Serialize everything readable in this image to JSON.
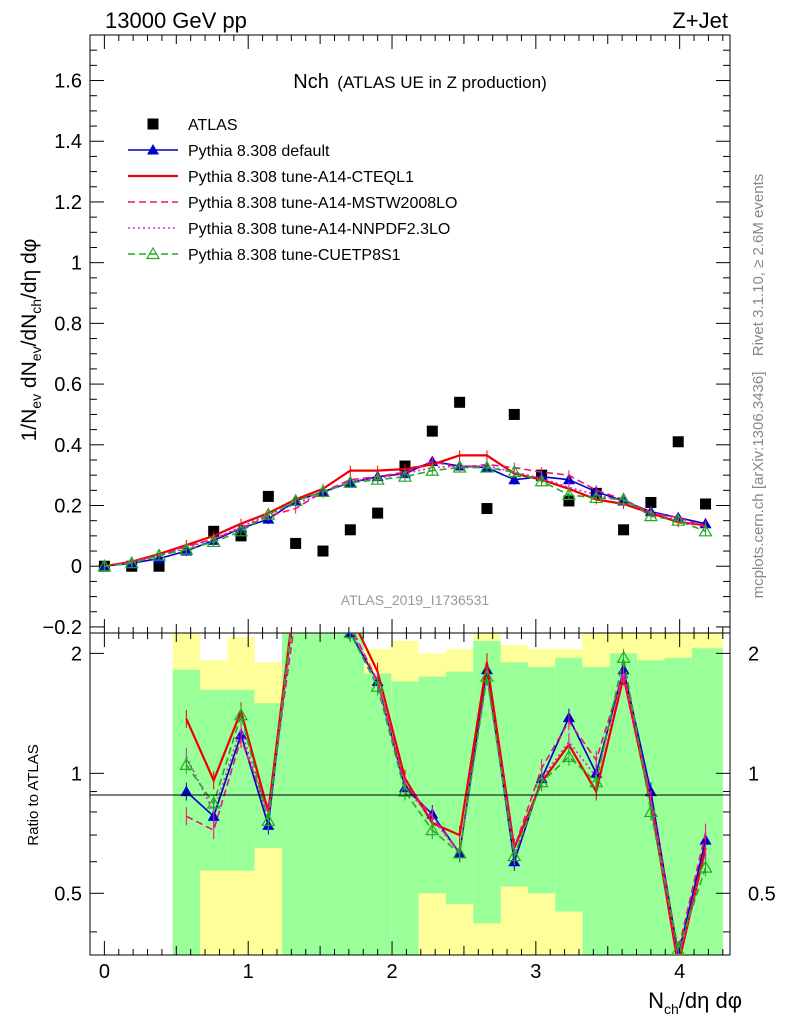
{
  "header": {
    "left": "13000 GeV pp",
    "right": "Z+Jet"
  },
  "side_labels": {
    "rivet": "Rivet 3.1.10, ≥ 2.6M events",
    "mcplots": "mcplots.cern.ch [arXiv:1306.3436]"
  },
  "chart_data": {
    "type": "line",
    "title_main": "Nch",
    "title_sub": "(ATLAS UE in Z production)",
    "watermark": "ATLAS_2019_I1736531",
    "xlabel": {
      "base": "N",
      "sub": "ch",
      "rest": "/dη dφ"
    },
    "ylabel": "1/N_ev dN_ev/dN_ch/dη dφ",
    "ratio_ylabel": "Ratio to ATLAS",
    "xlim": [
      -0.1,
      4.35
    ],
    "ylim": [
      -0.22,
      1.75
    ],
    "ratio_ylim": [
      0.35,
      2.25
    ],
    "xticks": [
      "0",
      "1",
      "2",
      "3",
      "4"
    ],
    "yticks": [
      "−0.2",
      "0",
      "0.2",
      "0.4",
      "0.6",
      "0.8",
      "1",
      "1.2",
      "1.4",
      "1.6"
    ],
    "ratio_yticks": [
      "0.5",
      "1",
      "2"
    ],
    "x": [
      0.0,
      0.19,
      0.38,
      0.57,
      0.76,
      0.95,
      1.14,
      1.33,
      1.52,
      1.71,
      1.9,
      2.09,
      2.28,
      2.47,
      2.66,
      2.85,
      3.04,
      3.23,
      3.42,
      3.61,
      3.8,
      3.99,
      4.18
    ],
    "series": [
      {
        "name": "ATLAS",
        "color": "#000000",
        "style": "marker",
        "values": [
          0.0,
          0.0,
          0.0,
          null,
          0.115,
          0.1,
          0.23,
          0.075,
          0.05,
          0.12,
          0.175,
          0.33,
          0.445,
          0.54,
          0.19,
          0.5,
          0.3,
          0.215,
          0.24,
          0.12,
          0.21,
          0.41,
          0.205
        ]
      },
      {
        "name": "Pythia 8.308 default",
        "color": "#0000cc",
        "style": "solid-triangle",
        "values": [
          0.0,
          0.01,
          0.025,
          0.05,
          0.085,
          0.125,
          0.155,
          0.215,
          0.245,
          0.275,
          0.295,
          0.305,
          0.345,
          0.33,
          0.325,
          0.285,
          0.295,
          0.285,
          0.245,
          0.215,
          0.18,
          0.16,
          0.14
        ]
      },
      {
        "name": "Pythia 8.308 tune-A14-CTEQL1",
        "color": "#ee0000",
        "style": "solid",
        "values": [
          0.0,
          0.015,
          0.04,
          0.07,
          0.1,
          0.14,
          0.175,
          0.22,
          0.255,
          0.315,
          0.315,
          0.32,
          0.335,
          0.365,
          0.365,
          0.305,
          0.285,
          0.255,
          0.22,
          0.205,
          0.175,
          0.145,
          0.135
        ]
      },
      {
        "name": "Pythia 8.308 tune-A14-MSTW2008LO",
        "color": "#ee1177",
        "style": "dashed",
        "values": [
          0.0,
          0.015,
          0.035,
          0.065,
          0.09,
          0.125,
          0.165,
          0.19,
          0.245,
          0.285,
          0.295,
          0.31,
          0.345,
          0.325,
          0.335,
          0.325,
          0.31,
          0.3,
          0.25,
          0.22,
          0.175,
          0.16,
          0.13
        ]
      },
      {
        "name": "Pythia 8.308 tune-A14-NNPDF2.3LO",
        "color": "#dd22cc",
        "style": "dotted",
        "values": [
          0.0,
          0.012,
          0.035,
          0.06,
          0.09,
          0.13,
          0.17,
          0.205,
          0.24,
          0.28,
          0.29,
          0.305,
          0.325,
          0.33,
          0.33,
          0.31,
          0.29,
          0.26,
          0.235,
          0.215,
          0.18,
          0.15,
          0.13
        ]
      },
      {
        "name": "Pythia 8.308 tune-CUETP8S1",
        "color": "#22aa22",
        "style": "dashed-open-triangle",
        "values": [
          0.0,
          0.01,
          0.035,
          0.055,
          0.08,
          0.115,
          0.17,
          0.215,
          0.245,
          0.275,
          0.285,
          0.295,
          0.315,
          0.325,
          0.325,
          0.31,
          0.28,
          0.235,
          0.225,
          0.22,
          0.165,
          0.15,
          0.115
        ]
      }
    ],
    "ratio_series": [
      {
        "name": "Pythia 8.308 default",
        "values": [
          null,
          null,
          null,
          0.9,
          0.78,
          1.25,
          0.74,
          2.9,
          3.0,
          2.25,
          1.7,
          0.92,
          0.79,
          0.63,
          1.82,
          0.6,
          0.97,
          1.38,
          1.0,
          1.82,
          0.9,
          0.35,
          0.68
        ]
      },
      {
        "name": "Pythia 8.308 tune-A14-CTEQL1",
        "values": [
          null,
          null,
          null,
          1.37,
          0.96,
          1.43,
          0.8,
          2.9,
          3.0,
          2.5,
          1.8,
          0.97,
          0.75,
          0.7,
          1.9,
          0.65,
          0.95,
          1.18,
          0.9,
          1.75,
          0.84,
          0.33,
          0.65
        ]
      },
      {
        "name": "Pythia 8.308 tune-A14-MSTW2008LO",
        "values": [
          null,
          null,
          null,
          0.78,
          0.72,
          1.22,
          0.8,
          2.5,
          2.9,
          2.35,
          1.7,
          0.94,
          0.78,
          0.63,
          1.75,
          0.65,
          1.03,
          1.35,
          1.08,
          1.8,
          0.86,
          0.36,
          0.71
        ]
      },
      {
        "name": "Pythia 8.308 tune-A14-NNPDF2.3LO",
        "values": [
          null,
          null,
          null,
          1.1,
          0.8,
          1.3,
          0.76,
          2.7,
          2.95,
          2.3,
          1.7,
          0.92,
          0.77,
          0.63,
          1.75,
          0.62,
          0.97,
          1.2,
          0.98,
          1.78,
          0.85,
          0.34,
          0.63
        ]
      },
      {
        "name": "Pythia 8.308 tune-CUETP8S1",
        "values": [
          null,
          null,
          null,
          1.05,
          0.84,
          1.4,
          0.76,
          2.9,
          3.0,
          2.25,
          1.65,
          0.9,
          0.72,
          0.63,
          1.75,
          0.62,
          0.95,
          1.1,
          0.95,
          1.95,
          0.8,
          0.36,
          0.58
        ]
      }
    ],
    "ratio_bands": [
      {
        "x0": 0.475,
        "x1": 0.665,
        "green": [
          0.35,
          1.82
        ],
        "yellow": [
          0.35,
          2.25
        ]
      },
      {
        "x0": 0.665,
        "x1": 0.855,
        "green": [
          0.57,
          1.62
        ],
        "yellow": [
          0.35,
          1.92
        ]
      },
      {
        "x0": 0.855,
        "x1": 1.045,
        "green": [
          0.57,
          1.62
        ],
        "yellow": [
          0.35,
          2.2
        ]
      },
      {
        "x0": 1.045,
        "x1": 1.235,
        "green": [
          0.65,
          1.5
        ],
        "yellow": [
          0.35,
          1.9
        ]
      },
      {
        "x0": 1.235,
        "x1": 1.425,
        "green": [
          0.35,
          2.25
        ],
        "yellow": [
          0.35,
          2.25
        ]
      },
      {
        "x0": 1.425,
        "x1": 1.615,
        "green": [
          0.35,
          2.25
        ],
        "yellow": [
          0.35,
          2.25
        ]
      },
      {
        "x0": 1.615,
        "x1": 1.805,
        "green": [
          0.35,
          2.25
        ],
        "yellow": [
          0.35,
          2.25
        ]
      },
      {
        "x0": 1.805,
        "x1": 1.995,
        "green": [
          0.35,
          1.78
        ],
        "yellow": [
          0.35,
          2.05
        ]
      },
      {
        "x0": 1.995,
        "x1": 2.185,
        "green": [
          0.35,
          1.7
        ],
        "yellow": [
          0.35,
          2.15
        ]
      },
      {
        "x0": 2.185,
        "x1": 2.375,
        "green": [
          0.5,
          1.75
        ],
        "yellow": [
          0.35,
          2.0
        ]
      },
      {
        "x0": 2.375,
        "x1": 2.565,
        "green": [
          0.47,
          1.8
        ],
        "yellow": [
          0.35,
          2.05
        ]
      },
      {
        "x0": 2.565,
        "x1": 2.755,
        "green": [
          0.42,
          2.15
        ],
        "yellow": [
          0.35,
          2.25
        ]
      },
      {
        "x0": 2.755,
        "x1": 2.945,
        "green": [
          0.52,
          1.9
        ],
        "yellow": [
          0.35,
          2.1
        ]
      },
      {
        "x0": 2.945,
        "x1": 3.135,
        "green": [
          0.5,
          1.85
        ],
        "yellow": [
          0.35,
          2.05
        ]
      },
      {
        "x0": 3.135,
        "x1": 3.325,
        "green": [
          0.45,
          1.95
        ],
        "yellow": [
          0.35,
          2.05
        ]
      },
      {
        "x0": 3.325,
        "x1": 3.515,
        "green": [
          0.35,
          1.85
        ],
        "yellow": [
          0.35,
          2.25
        ]
      },
      {
        "x0": 3.515,
        "x1": 3.705,
        "green": [
          0.35,
          2.0
        ],
        "yellow": [
          0.35,
          2.25
        ]
      },
      {
        "x0": 3.705,
        "x1": 3.895,
        "green": [
          0.35,
          1.92
        ],
        "yellow": [
          0.35,
          2.25
        ]
      },
      {
        "x0": 3.895,
        "x1": 4.085,
        "green": [
          0.35,
          1.95
        ],
        "yellow": [
          0.35,
          2.25
        ]
      },
      {
        "x0": 4.085,
        "x1": 4.3,
        "green": [
          0.35,
          2.06
        ],
        "yellow": [
          0.35,
          2.25
        ]
      }
    ],
    "legend_position": "top-left",
    "grid": false
  }
}
